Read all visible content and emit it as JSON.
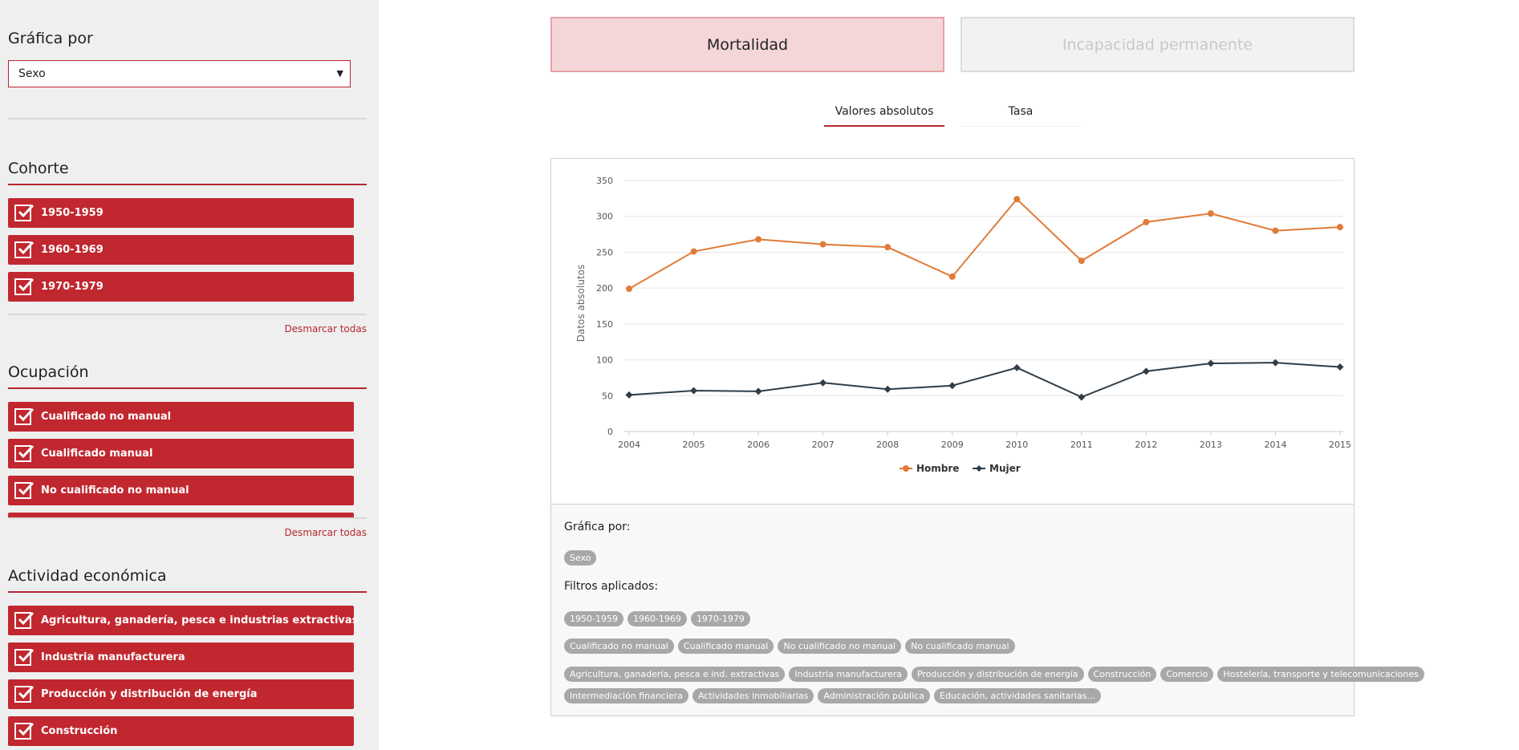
{
  "sidebar": {
    "graph_by_label": "Gráfica por",
    "graph_by_value": "Sexo",
    "cohorte": {
      "title": "Cohorte",
      "items": [
        "1950-1959",
        "1960-1969",
        "1970-1979"
      ],
      "clear": "Desmarcar todas"
    },
    "ocupacion": {
      "title": "Ocupación",
      "items": [
        "Cualificado no manual",
        "Cualificado manual",
        "No cualificado no manual"
      ],
      "clear": "Desmarcar todas"
    },
    "actividad": {
      "title": "Actividad económica",
      "items": [
        "Agricultura, ganadería, pesca e industrias extractivas",
        "Industria manufacturera",
        "Producción y distribución de energía",
        "Construcción"
      ]
    }
  },
  "main": {
    "tabs": {
      "active": "Mortalidad",
      "inactive": "Incapacidad permanente"
    },
    "subtabs": {
      "active": "Valores absolutos",
      "inactive": "Tasa"
    }
  },
  "chart_data": {
    "type": "line",
    "ylabel": "Datos absolutos",
    "ylim": [
      0,
      350
    ],
    "yticks": [
      0,
      50,
      100,
      150,
      200,
      250,
      300,
      350
    ],
    "x": [
      2004,
      2005,
      2006,
      2007,
      2008,
      2009,
      2010,
      2011,
      2012,
      2013,
      2014,
      2015
    ],
    "series": [
      {
        "name": "Hombre",
        "color": "#e07b39",
        "marker": "circle",
        "values": [
          199,
          251,
          268,
          261,
          257,
          216,
          324,
          238,
          292,
          304,
          280,
          285
        ]
      },
      {
        "name": "Mujer",
        "color": "#2f3e4a",
        "marker": "diamond",
        "values": [
          51,
          57,
          56,
          68,
          59,
          64,
          89,
          48,
          84,
          95,
          96,
          90
        ]
      }
    ],
    "grid": true,
    "legend": "bottom-center"
  },
  "info": {
    "graph_by_label": "Gráfica por:",
    "graph_by_chip": "Sexo",
    "filters_label": "Filtros aplicados:",
    "chips_cohorte": [
      "1950-1959",
      "1960-1969",
      "1970-1979"
    ],
    "chips_ocupacion": [
      "Cualificado no manual",
      "Cualificado manual",
      "No cualificado no manual",
      "No cualificado manual"
    ],
    "chips_actividad_1": [
      "Agricultura, ganadería, pesca e ind. extractivas",
      "Industria manufacturera",
      "Producción y distribución de energía",
      "Construcción",
      "Comercio",
      "Hostelería, transporte y telecomunicaciones"
    ],
    "chips_actividad_2": [
      "Intermediación financiera",
      "Actividades inmobiliarias",
      "Administración pública",
      "Educación, actividades sanitarias..."
    ]
  }
}
